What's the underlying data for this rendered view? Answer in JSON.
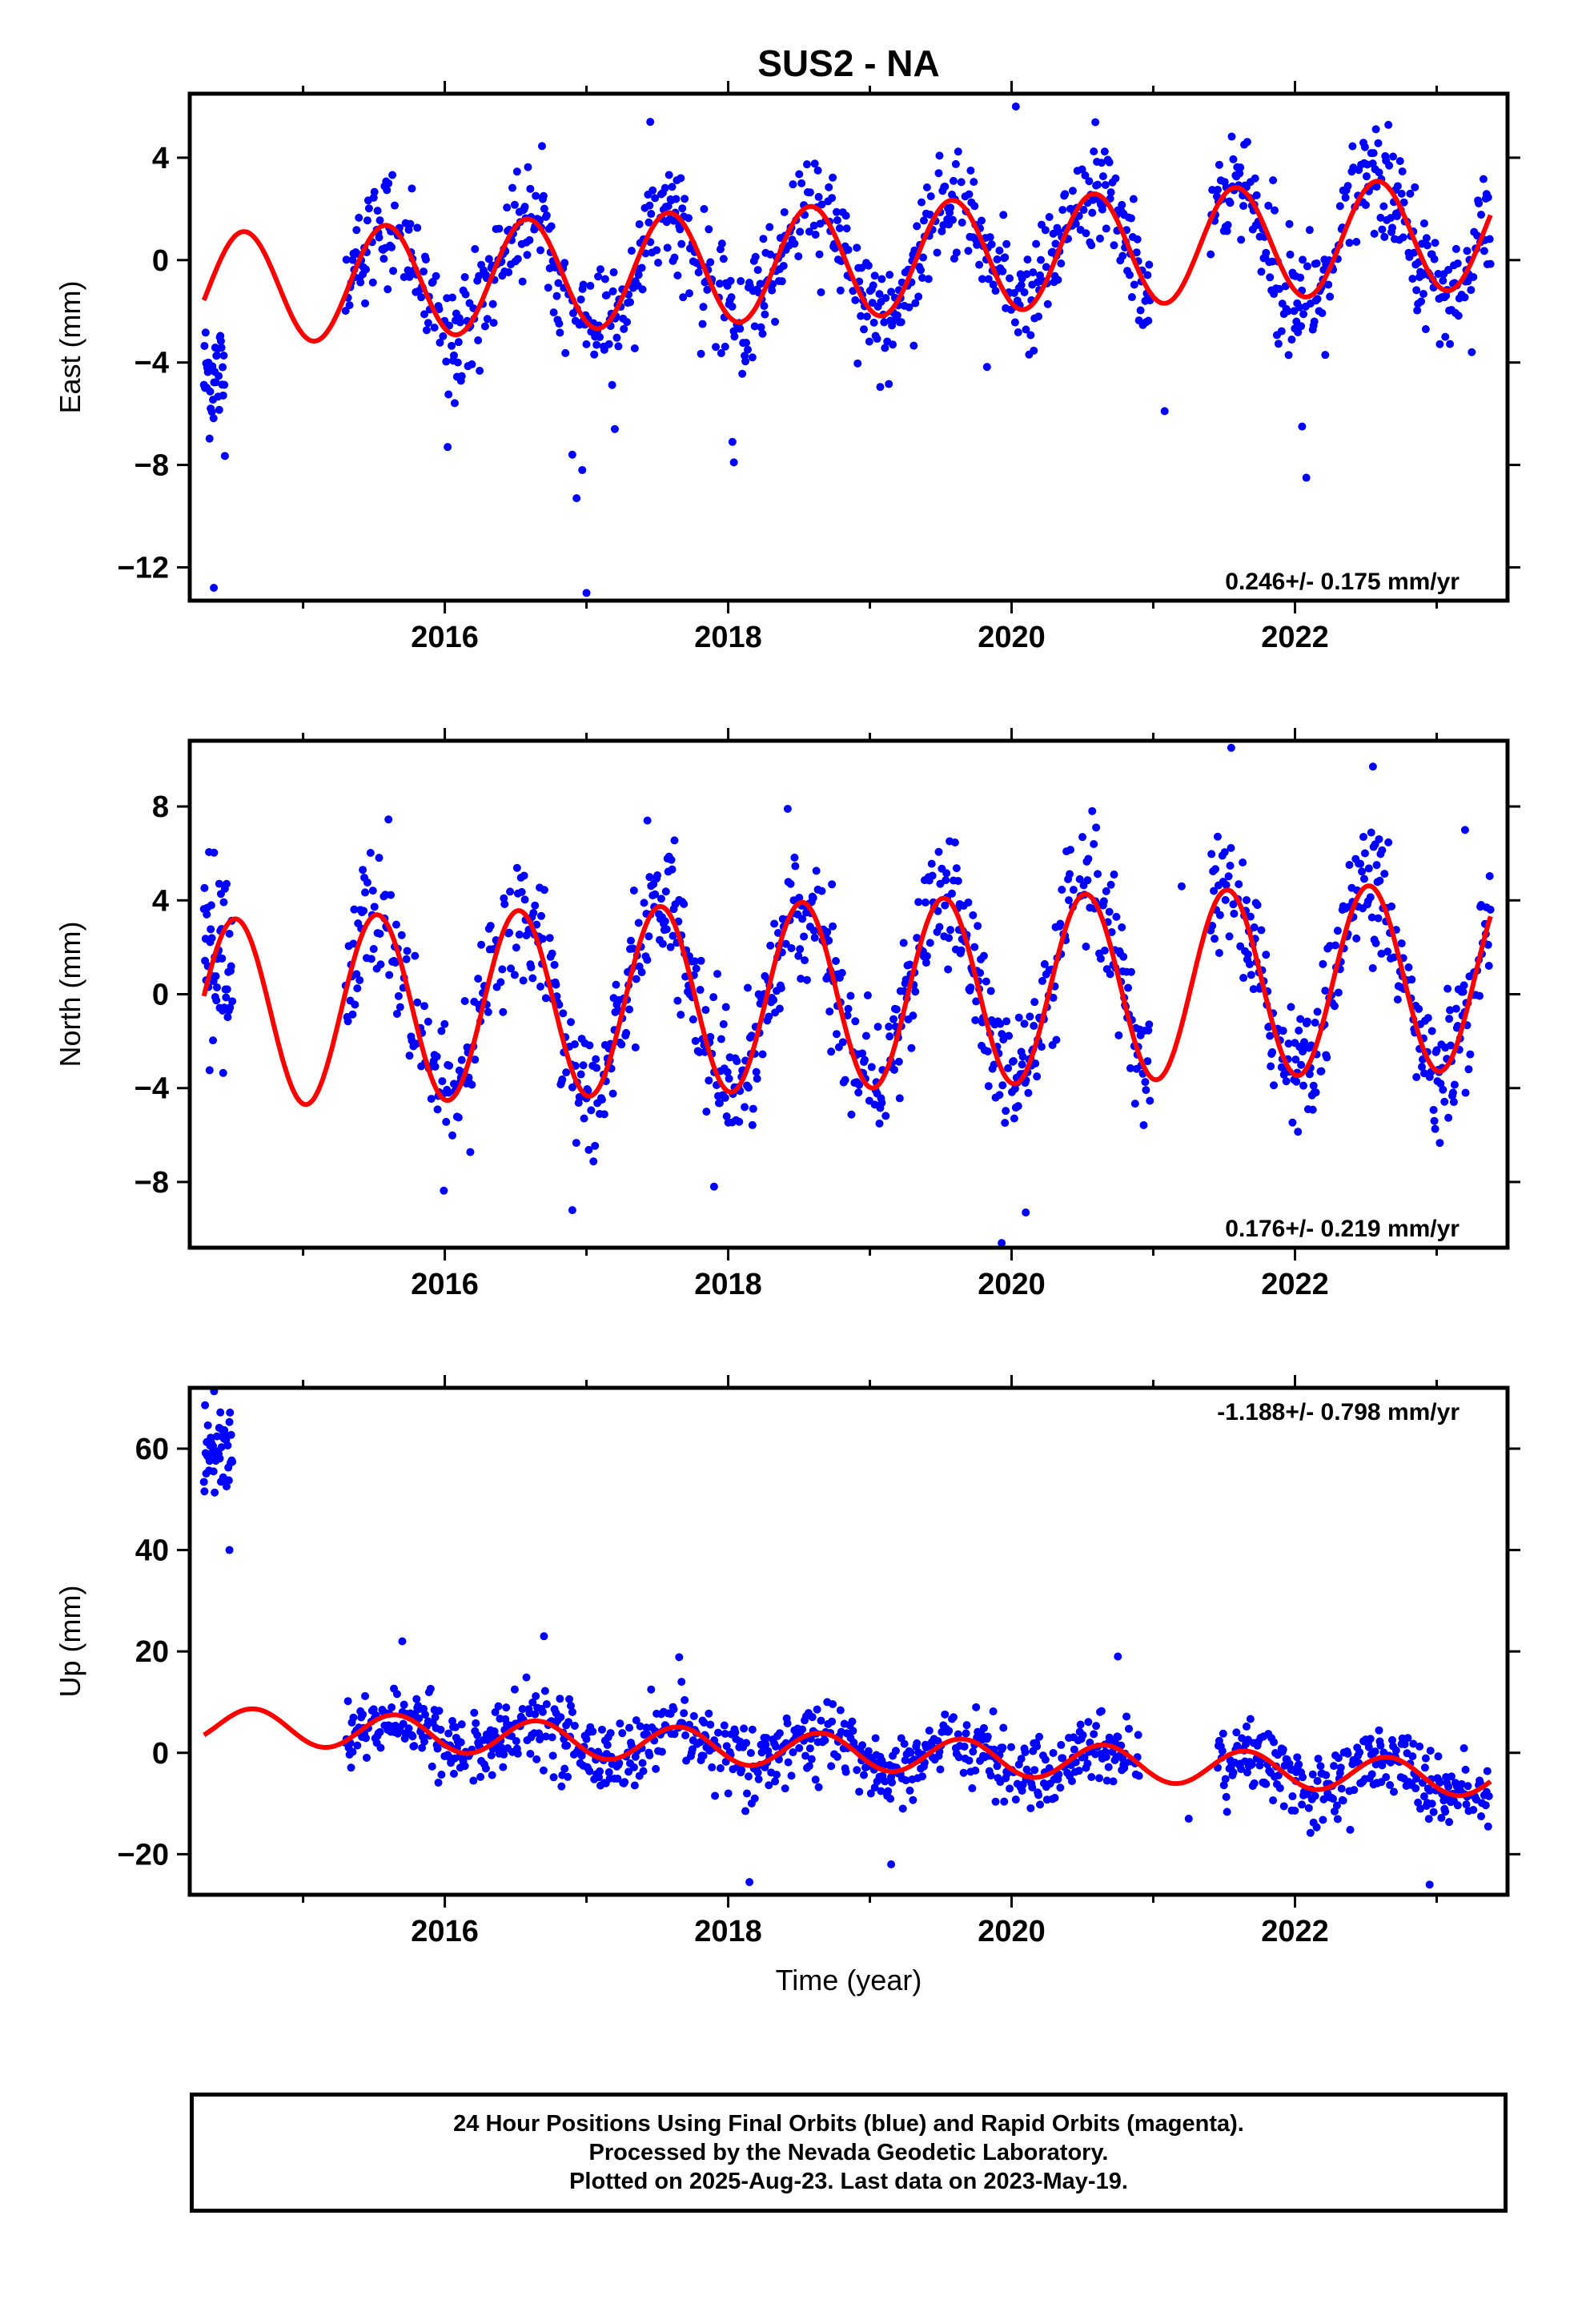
{
  "title": "SUS2 - NA",
  "xlabel": "Time (year)",
  "colors": {
    "points": "#0000ff",
    "fit": "#ff0000",
    "axes": "#000000"
  },
  "footer": {
    "line1": "24 Hour Positions Using Final Orbits (blue) and Rapid Orbits (magenta).",
    "line2": "Processed by the Nevada Geodetic Laboratory.",
    "line3": "Plotted on 2025-Aug-23. Last data on 2023-May-19."
  },
  "chart_data": [
    {
      "type": "scatter",
      "panel": "east",
      "title": "SUS2 - NA",
      "ylabel": "East (mm)",
      "xlabel": "",
      "xlim": [
        2014.2,
        2023.5
      ],
      "ylim": [
        -13.3,
        6.5
      ],
      "xticks": [
        2016,
        2018,
        2020,
        2022
      ],
      "yticks": [
        -12,
        -8,
        -4,
        0,
        4
      ],
      "rate_label": "0.246+/- 0.175 mm/yr",
      "rate_position": "bottom-right",
      "series": [
        {
          "name": "Final Orbits",
          "color": "blue",
          "seasonal_amplitude": 2.2,
          "peak_phase": 0.58,
          "noise": 1.1,
          "trend": 0.246
        },
        {
          "name": "fit",
          "color": "red",
          "kind": "seasonal-model"
        }
      ],
      "gaps": [
        [
          2014.45,
          2015.3
        ],
        [
          2020.98,
          2021.4
        ]
      ],
      "early_block": {
        "x": [
          2014.3,
          2014.45
        ],
        "y_mean": -4.5,
        "y_spread": 1.2
      },
      "outliers": [
        {
          "x": 2014.37,
          "y": -12.8
        },
        {
          "x": 2017.0,
          "y": -13.0
        },
        {
          "x": 2016.93,
          "y": -9.3
        },
        {
          "x": 2016.9,
          "y": -7.6
        },
        {
          "x": 2016.97,
          "y": -8.2
        },
        {
          "x": 2017.2,
          "y": -6.6
        },
        {
          "x": 2016.02,
          "y": -7.3
        },
        {
          "x": 2018.04,
          "y": -7.9
        },
        {
          "x": 2018.03,
          "y": -7.1
        },
        {
          "x": 2022.08,
          "y": -8.5
        },
        {
          "x": 2022.05,
          "y": -6.5
        },
        {
          "x": 2020.03,
          "y": 6.0
        },
        {
          "x": 2017.45,
          "y": 5.4
        },
        {
          "x": 2021.08,
          "y": -5.9
        }
      ]
    },
    {
      "type": "scatter",
      "panel": "north",
      "ylabel": "North (mm)",
      "xlabel": "",
      "xlim": [
        2014.2,
        2023.5
      ],
      "ylim": [
        -10.8,
        10.8
      ],
      "xticks": [
        2016,
        2018,
        2020,
        2022
      ],
      "yticks": [
        -8,
        -4,
        0,
        4,
        8
      ],
      "rate_label": "0.176+/- 0.219 mm/yr",
      "rate_position": "bottom-right",
      "series": [
        {
          "name": "Final Orbits",
          "color": "blue",
          "seasonal_amplitude": 4.0,
          "peak_phase": 0.52,
          "noise": 1.3,
          "trend": 0.176
        },
        {
          "name": "fit",
          "color": "red",
          "kind": "seasonal-model"
        }
      ],
      "gaps": [
        [
          2014.5,
          2015.3
        ],
        [
          2020.98,
          2021.4
        ]
      ],
      "early_block": {
        "x": [
          2014.3,
          2014.5
        ],
        "y_mean": 1.5,
        "y_spread": 2.0
      },
      "outliers": [
        {
          "x": 2021.55,
          "y": 10.5
        },
        {
          "x": 2022.55,
          "y": 9.7
        },
        {
          "x": 2019.93,
          "y": -10.6
        },
        {
          "x": 2020.1,
          "y": -9.3
        },
        {
          "x": 2016.9,
          "y": -9.2
        },
        {
          "x": 2017.43,
          "y": 7.4
        },
        {
          "x": 2018.42,
          "y": 7.9
        },
        {
          "x": 2020.5,
          "y": 6.7
        },
        {
          "x": 2023.2,
          "y": 7.0
        },
        {
          "x": 2017.9,
          "y": -8.2
        },
        {
          "x": 2021.2,
          "y": 4.6
        }
      ]
    },
    {
      "type": "scatter",
      "panel": "up",
      "ylabel": "Up (mm)",
      "xlabel": "Time (year)",
      "xlim": [
        2014.2,
        2023.5
      ],
      "ylim": [
        -28,
        72
      ],
      "xticks": [
        2016,
        2018,
        2020,
        2022
      ],
      "yticks": [
        -20,
        0,
        20,
        40,
        60
      ],
      "rate_label": "-1.188+/- 0.798 mm/yr",
      "rate_position": "top-right",
      "series": [
        {
          "name": "Final Orbits",
          "color": "blue",
          "seasonal_amplitude": 3.5,
          "peak_phase": 0.65,
          "noise": 3.6,
          "trend": -1.188
        },
        {
          "name": "fit",
          "color": "red",
          "kind": "seasonal-model"
        }
      ],
      "gaps": [
        [
          2014.5,
          2015.3
        ],
        [
          2020.9,
          2021.45
        ]
      ],
      "early_block": {
        "x": [
          2014.3,
          2014.5
        ],
        "y_mean": 60,
        "y_spread": 4
      },
      "outliers": [
        {
          "x": 2014.48,
          "y": 40
        },
        {
          "x": 2018.15,
          "y": -25.5
        },
        {
          "x": 2022.95,
          "y": -26
        },
        {
          "x": 2019.15,
          "y": -22
        },
        {
          "x": 2016.7,
          "y": 23
        },
        {
          "x": 2015.7,
          "y": 22
        },
        {
          "x": 2020.75,
          "y": 19
        },
        {
          "x": 2021.25,
          "y": -13
        }
      ]
    }
  ]
}
